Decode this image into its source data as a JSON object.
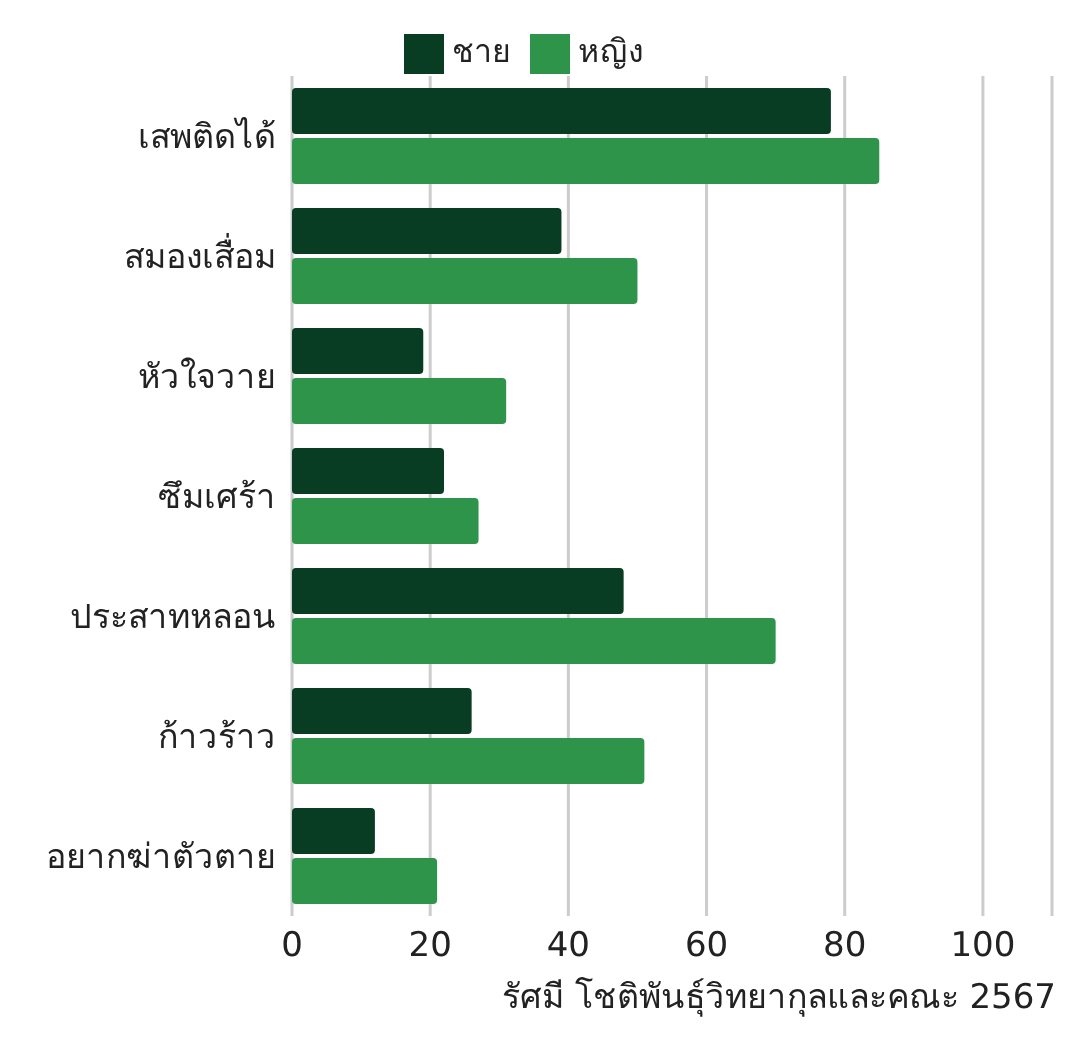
{
  "chart_data": {
    "type": "bar",
    "orientation": "horizontal",
    "categories": [
      "เสพติดได้",
      "สมองเสื่อม",
      "หัวใจวาย",
      "ซึมเศร้า",
      "ประสาทหลอน",
      "ก้าวร้าว",
      "อยากฆ่าตัวตาย"
    ],
    "series": [
      {
        "name": "ชาย",
        "color": "#083d24",
        "values": [
          78,
          39,
          19,
          22,
          48,
          26,
          12
        ]
      },
      {
        "name": "หญิง",
        "color": "#2d944a",
        "values": [
          85,
          50,
          31,
          27,
          70,
          51,
          21
        ]
      }
    ],
    "xlim": [
      0,
      110
    ],
    "xticks": [
      0,
      20,
      40,
      60,
      80,
      100
    ],
    "grid": "x",
    "legend": "top",
    "annotations": [
      "รัศมี โชติพันธุ์วิทยากุลและคณะ 2567"
    ]
  }
}
